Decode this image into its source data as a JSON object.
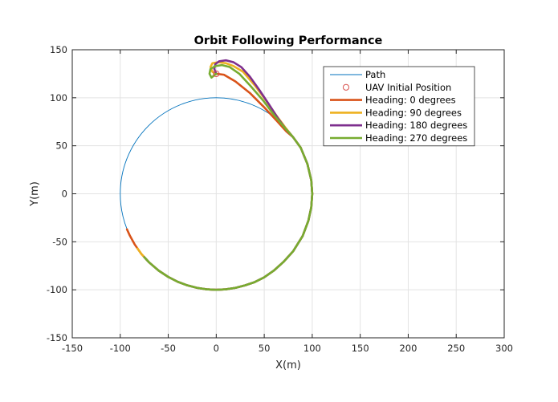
{
  "chart_data": {
    "type": "line",
    "title": "Orbit Following Performance",
    "xlabel": "X(m)",
    "ylabel": "Y(m)",
    "xlim": [
      -150,
      300
    ],
    "ylim": [
      -150,
      150
    ],
    "xticks": [
      -150,
      -100,
      -50,
      0,
      50,
      100,
      150,
      200,
      250,
      300
    ],
    "yticks": [
      -150,
      -100,
      -50,
      0,
      50,
      100,
      150
    ],
    "grid": true,
    "legend_position": "top-right",
    "path": {
      "name": "Path",
      "center": [
        0,
        0
      ],
      "radius": 100,
      "color": "#0072bd"
    },
    "initial_position": {
      "name": "UAV Initial Position",
      "x": 0,
      "y": 125,
      "color": "#d9534f"
    },
    "series": [
      {
        "name": "Heading: 0 degrees",
        "color": "#d95319",
        "x": [
          0,
          8,
          20,
          35,
          50,
          63,
          73,
          80,
          88,
          95,
          99,
          100,
          99,
          96,
          90,
          80,
          70,
          60,
          50,
          40,
          30,
          20,
          10,
          0,
          -10,
          -20,
          -30,
          -40,
          -50,
          -60,
          -70,
          -78,
          -85,
          -90,
          -93
        ],
        "y": [
          125,
          124,
          117,
          105,
          90,
          76,
          65,
          59,
          48,
          31,
          14,
          0,
          -14,
          -28,
          -44,
          -60,
          -71,
          -80,
          -87,
          -92,
          -95.4,
          -98,
          -99.5,
          -100,
          -99.5,
          -98,
          -95.4,
          -91.7,
          -86.6,
          -80,
          -71.4,
          -62.7,
          -52.7,
          -43.6,
          -37
        ]
      },
      {
        "name": "Heading: 90 degrees",
        "color": "#edb120",
        "x": [
          0,
          -4,
          -6,
          -4,
          2,
          10,
          18,
          28,
          40,
          52,
          63,
          72,
          80,
          88,
          95,
          99,
          100,
          99,
          96,
          90,
          80,
          70,
          60,
          50,
          40,
          30,
          20,
          10,
          0,
          -10,
          -20,
          -30,
          -40,
          -50,
          -60,
          -70,
          -78,
          -82
        ],
        "y": [
          125,
          127,
          132,
          136,
          137,
          136,
          133,
          127,
          113,
          97,
          81,
          69,
          59,
          48,
          31,
          14,
          0,
          -14,
          -28,
          -44,
          -60,
          -71,
          -80,
          -87,
          -92,
          -95.4,
          -98,
          -99.5,
          -100,
          -99.5,
          -98,
          -95.4,
          -91.7,
          -86.6,
          -80,
          -71.4,
          -62.7,
          -57
        ]
      },
      {
        "name": "Heading: 180 degrees",
        "color": "#7e2f8e",
        "x": [
          0,
          -2,
          -1,
          3,
          10,
          18,
          26,
          35,
          45,
          55,
          64,
          72,
          80,
          88,
          95,
          99,
          100,
          99,
          96,
          90,
          80,
          70,
          60,
          50,
          40,
          30,
          20,
          10,
          0,
          -10,
          -20,
          -30,
          -40,
          -50,
          -60,
          -70,
          -75
        ],
        "y": [
          125,
          130,
          135,
          138,
          139,
          137,
          132,
          122,
          108,
          93,
          79,
          68,
          59,
          48,
          31,
          14,
          0,
          -14,
          -28,
          -44,
          -60,
          -71,
          -80,
          -87,
          -92,
          -95.4,
          -98,
          -99.5,
          -100,
          -99.5,
          -98,
          -95.4,
          -91.7,
          -86.6,
          -80,
          -71.4,
          -66
        ]
      },
      {
        "name": "Heading: 270 degrees",
        "color": "#77ac30",
        "x": [
          0,
          -5,
          -7,
          -6,
          -1,
          6,
          14,
          24,
          36,
          49,
          61,
          72,
          80,
          88,
          95,
          99,
          100,
          99,
          96,
          90,
          80,
          70,
          60,
          50,
          40,
          30,
          20,
          10,
          0,
          -10,
          -20,
          -30,
          -40,
          -50,
          -60,
          -70,
          -75
        ],
        "y": [
          125,
          121,
          125,
          130,
          133,
          134,
          132,
          125,
          112,
          97,
          81,
          68,
          59,
          48,
          31,
          14,
          0,
          -14,
          -28,
          -44,
          -60,
          -71,
          -80,
          -87,
          -92,
          -95.4,
          -98,
          -99.5,
          -100,
          -99.5,
          -98,
          -95.4,
          -91.7,
          -86.6,
          -80,
          -71.4,
          -66
        ]
      }
    ]
  }
}
